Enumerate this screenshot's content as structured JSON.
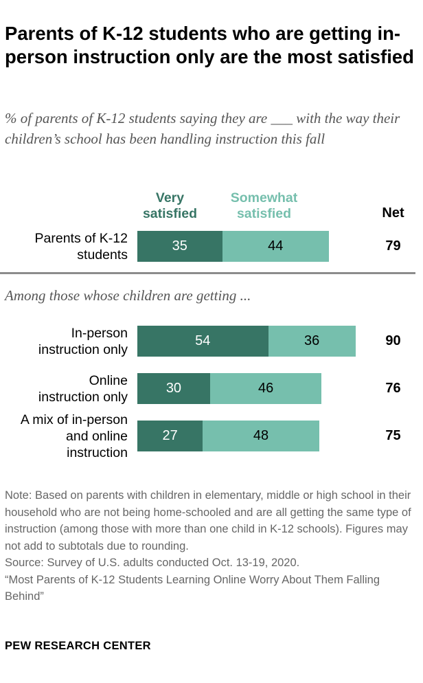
{
  "title": "Parents of K-12 students who are getting in-person instruction only are the most satisfied",
  "subtitle": "% of parents of K-12 students saying they are ___ with the way their children’s school has been handling instruction this fall",
  "colors": {
    "very": "#377565",
    "somewhat": "#76bfad"
  },
  "chart_data": {
    "type": "bar",
    "stacked": true,
    "orientation": "horizontal",
    "legend": [
      "Very satisfied",
      "Somewhat satisfied"
    ],
    "net_header": "Net",
    "section_label": "Among those whose children are getting ...",
    "categories": [
      "Parents of K-12 students",
      "In-person instruction only",
      "Online instruction only",
      "A mix of in-person and online instruction"
    ],
    "series": [
      {
        "name": "Very satisfied",
        "values": [
          35,
          54,
          30,
          27
        ]
      },
      {
        "name": "Somewhat satisfied",
        "values": [
          44,
          36,
          46,
          48
        ]
      }
    ],
    "net": [
      79,
      90,
      76,
      75
    ]
  },
  "labels": {
    "legend_very": [
      "Very",
      "satisfied"
    ],
    "legend_somewhat": [
      "Somewhat",
      "satisfied"
    ],
    "rows": [
      [
        "Parents of K-12",
        "students"
      ],
      [
        "In-person",
        "instruction only"
      ],
      [
        "Online",
        "instruction only"
      ],
      [
        "A mix of in-person",
        "and online",
        "instruction"
      ]
    ]
  },
  "note": "Note: Based on parents with children in elementary, middle or high school in their household who are not being home-schooled and are all getting the same type of instruction (among those with more than one child in K-12 schools). Figures may not add to subtotals due to rounding.",
  "source": "Source: Survey of U.S. adults conducted Oct. 13-19, 2020.",
  "report": "“Most Parents of K-12 Students Learning Online Worry About Them Falling Behind”",
  "brand": "PEW RESEARCH CENTER"
}
